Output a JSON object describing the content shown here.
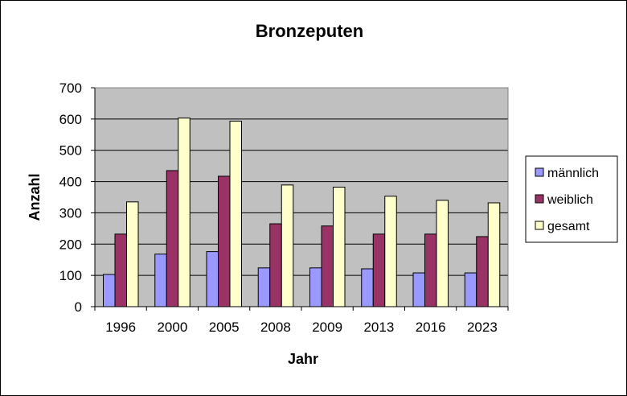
{
  "chart_data": {
    "type": "bar",
    "title": "Bronzeputen",
    "xlabel": "Jahr",
    "ylabel": "Anzahl",
    "categories": [
      "1996",
      "2000",
      "2005",
      "2008",
      "2009",
      "2013",
      "2016",
      "2023"
    ],
    "series": [
      {
        "name": "männlich",
        "color": "#9999ff",
        "values": [
          103,
          168,
          176,
          124,
          124,
          121,
          108,
          108
        ]
      },
      {
        "name": "weiblich",
        "color": "#993366",
        "values": [
          232,
          435,
          417,
          265,
          258,
          232,
          232,
          224
        ]
      },
      {
        "name": "gesamt",
        "color": "#ffffcc",
        "values": [
          335,
          603,
          593,
          389,
          382,
          353,
          340,
          332
        ]
      }
    ],
    "ylim": [
      0,
      700
    ],
    "yticks": [
      0,
      100,
      200,
      300,
      400,
      500,
      600,
      700
    ],
    "grid": true,
    "plot_background": "#c0c0c0",
    "legend_position": "right"
  }
}
